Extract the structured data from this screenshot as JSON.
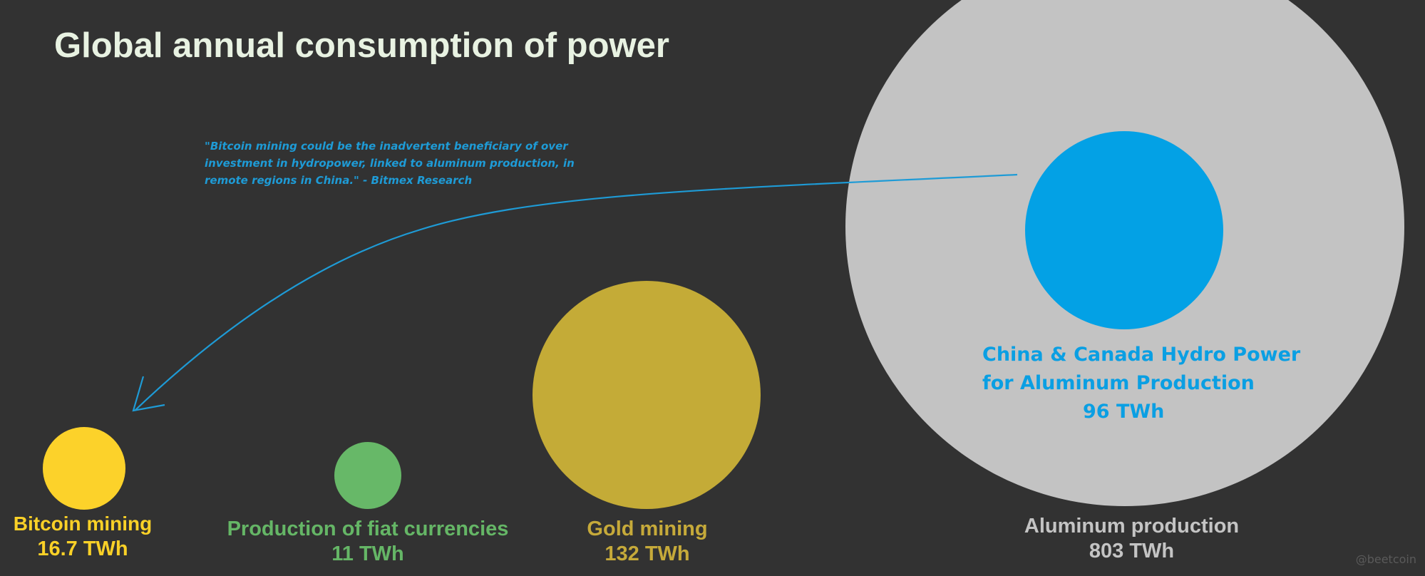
{
  "chart_data": {
    "type": "bubble",
    "title": "Global annual consumption of power",
    "unit": "TWh",
    "series": [
      {
        "name": "Bitcoin mining",
        "value": 16.7,
        "value_label": "16.7 TWh",
        "color": "#fcd22a"
      },
      {
        "name": "Production of fiat currencies",
        "value": 11,
        "value_label": "11 TWh",
        "color": "#67b868"
      },
      {
        "name": "Gold mining",
        "value": 132,
        "value_label": "132 TWh",
        "color": "#c4ab37"
      },
      {
        "name": "Aluminum production",
        "value": 803,
        "value_label": "803 TWh",
        "color": "#c3c3c3"
      },
      {
        "name_line1": "China & Canada Hydro Power",
        "name_line2": "for Aluminum Production",
        "value": 96,
        "value_label": "96 TWh",
        "color": "#03a1e5",
        "subset_of": "Aluminum production"
      }
    ],
    "annotation": {
      "text": "\"Bitcoin mining could be the inadvertent beneficiary of over investment in hydropower, linked to aluminum production, in remote regions in China.\" - Bitmex Research",
      "color": "#1e9bd6",
      "arrow_from": "China & Canada Hydro Power",
      "arrow_to": "Bitcoin mining"
    },
    "watermark": "@beetcoin"
  }
}
